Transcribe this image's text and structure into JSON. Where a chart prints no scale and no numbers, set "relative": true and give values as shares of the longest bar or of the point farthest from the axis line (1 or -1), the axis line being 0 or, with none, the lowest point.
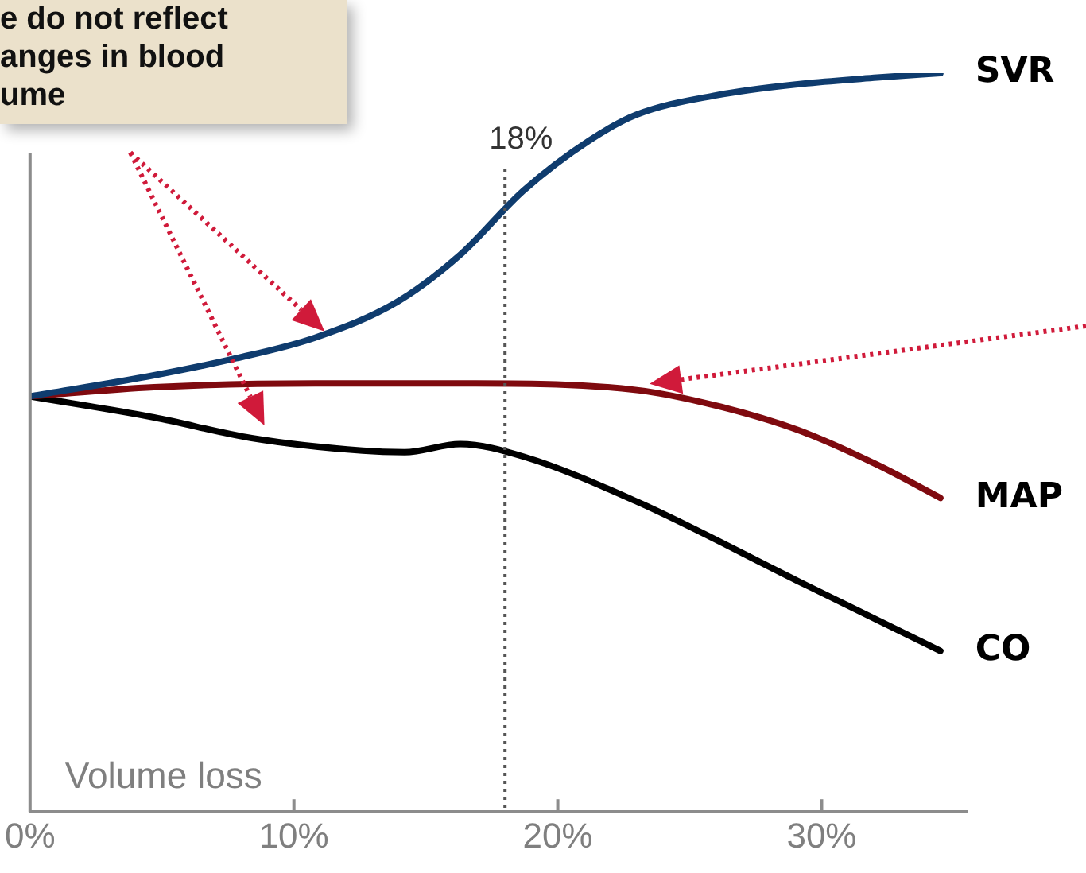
{
  "chart_data": {
    "type": "line",
    "relative": true,
    "xlabel": "Volume loss",
    "xlim": [
      0,
      35.5
    ],
    "xticks": [
      {
        "value": 0,
        "label": "0%"
      },
      {
        "value": 10,
        "label": "10%"
      },
      {
        "value": 20,
        "label": "20%"
      },
      {
        "value": 30,
        "label": "30%"
      }
    ],
    "series": [
      {
        "name": "SVR",
        "color": "#0f3c6e",
        "x": [
          0,
          4.7,
          7.8,
          10.8,
          13.9,
          16.3,
          18.7,
          21.2,
          23.0,
          26.0,
          29.1,
          32.1,
          34.5
        ],
        "values": [
          0.5625,
          0.591,
          0.614,
          0.642,
          0.69,
          0.754,
          0.841,
          0.909,
          0.944,
          0.97,
          0.985,
          0.994,
          1
        ]
      },
      {
        "name": "MAP",
        "color": "#7f0a0f",
        "x": [
          0,
          4.7,
          10.8,
          16.9,
          23.0,
          26.0,
          29.1,
          32.1,
          34.5
        ],
        "values": [
          0.5625,
          0.575,
          0.58,
          0.58,
          0.571,
          0.55,
          0.517,
          0.47,
          0.425
        ]
      },
      {
        "name": "CO",
        "color": "#000000",
        "x": [
          0,
          4.7,
          8.4,
          12.6,
          14.2,
          16.3,
          18.7,
          23.0,
          29.1,
          34.5
        ],
        "values": [
          0.5625,
          0.534,
          0.506,
          0.489,
          0.487,
          0.498,
          0.481,
          0.42,
          0.3125,
          0.218
        ]
      }
    ],
    "ref_lines": [
      {
        "axis": "x",
        "value": 18,
        "label": "18%",
        "line_style": "dotted",
        "color": "#555555"
      }
    ],
    "annotations": [
      "e do not reflect\nanges in blood\nume"
    ],
    "grid": false,
    "legend": false,
    "marker": "none",
    "line_style": "solid"
  }
}
